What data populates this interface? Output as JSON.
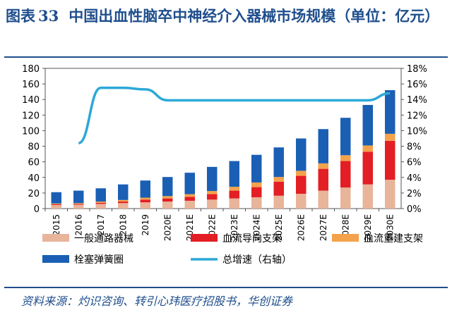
{
  "header": {
    "label": "图表",
    "number": "33",
    "text": "中国出血性脑卒中神经介入器械市场规模（单位：亿元）"
  },
  "source": "资料来源：灼识咨询、转引心玮医疗招股书，华创证券",
  "chart_data": {
    "type": "bar",
    "stacked": true,
    "categories": [
      "2015",
      "2016",
      "2017",
      "2018",
      "2019",
      "2020E",
      "2021E",
      "2022E",
      "2023E",
      "2024E",
      "2025E",
      "2026E",
      "2027E",
      "2028E",
      "2029E",
      "2030E"
    ],
    "ylim": [
      0,
      180
    ],
    "yticks": [
      0,
      20,
      40,
      60,
      80,
      100,
      120,
      140,
      160,
      180
    ],
    "y2lim": [
      0,
      18
    ],
    "y2ticks": [
      "0%",
      "2%",
      "4%",
      "6%",
      "8%",
      "10%",
      "12%",
      "14%",
      "16%",
      "18%"
    ],
    "series": [
      {
        "name": "一般通路器械",
        "color": "#e8b49a",
        "values": [
          4.5,
          5,
          6,
          7,
          8,
          9,
          10,
          11.5,
          13,
          14.5,
          16.5,
          19,
          23,
          27,
          31,
          37
        ]
      },
      {
        "name": "血流导向支架",
        "color": "#e31e24",
        "values": [
          1,
          1,
          1.5,
          2,
          3.5,
          4,
          5,
          7,
          10,
          13,
          18,
          23,
          28,
          34,
          42,
          50
        ]
      },
      {
        "name": "血流重建支架",
        "color": "#f4a24c",
        "values": [
          1,
          1,
          1.5,
          2,
          2.5,
          3,
          3.5,
          4,
          5,
          6,
          6,
          6.5,
          7,
          7.5,
          8,
          9
        ]
      },
      {
        "name": "栓塞弹簧圈",
        "color": "#1a5fb4",
        "values": [
          14.5,
          16,
          17,
          20,
          22,
          24.5,
          27.5,
          31,
          33,
          35.5,
          38,
          41.5,
          44,
          48,
          52,
          56
        ]
      }
    ],
    "line": {
      "name": "总增速（右轴）",
      "color": "#2ba8d8",
      "values": [
        null,
        8.4,
        15.5,
        15.5,
        15.3,
        13.9,
        13.9,
        13.9,
        13.9,
        13.9,
        13.9,
        13.9,
        13.9,
        13.9,
        13.9,
        14.8
      ]
    },
    "legend_order": [
      "一般通路器械",
      "血流导向支架",
      "血流重建支架",
      "栓塞弹簧圈",
      "总增速（右轴）"
    ]
  }
}
